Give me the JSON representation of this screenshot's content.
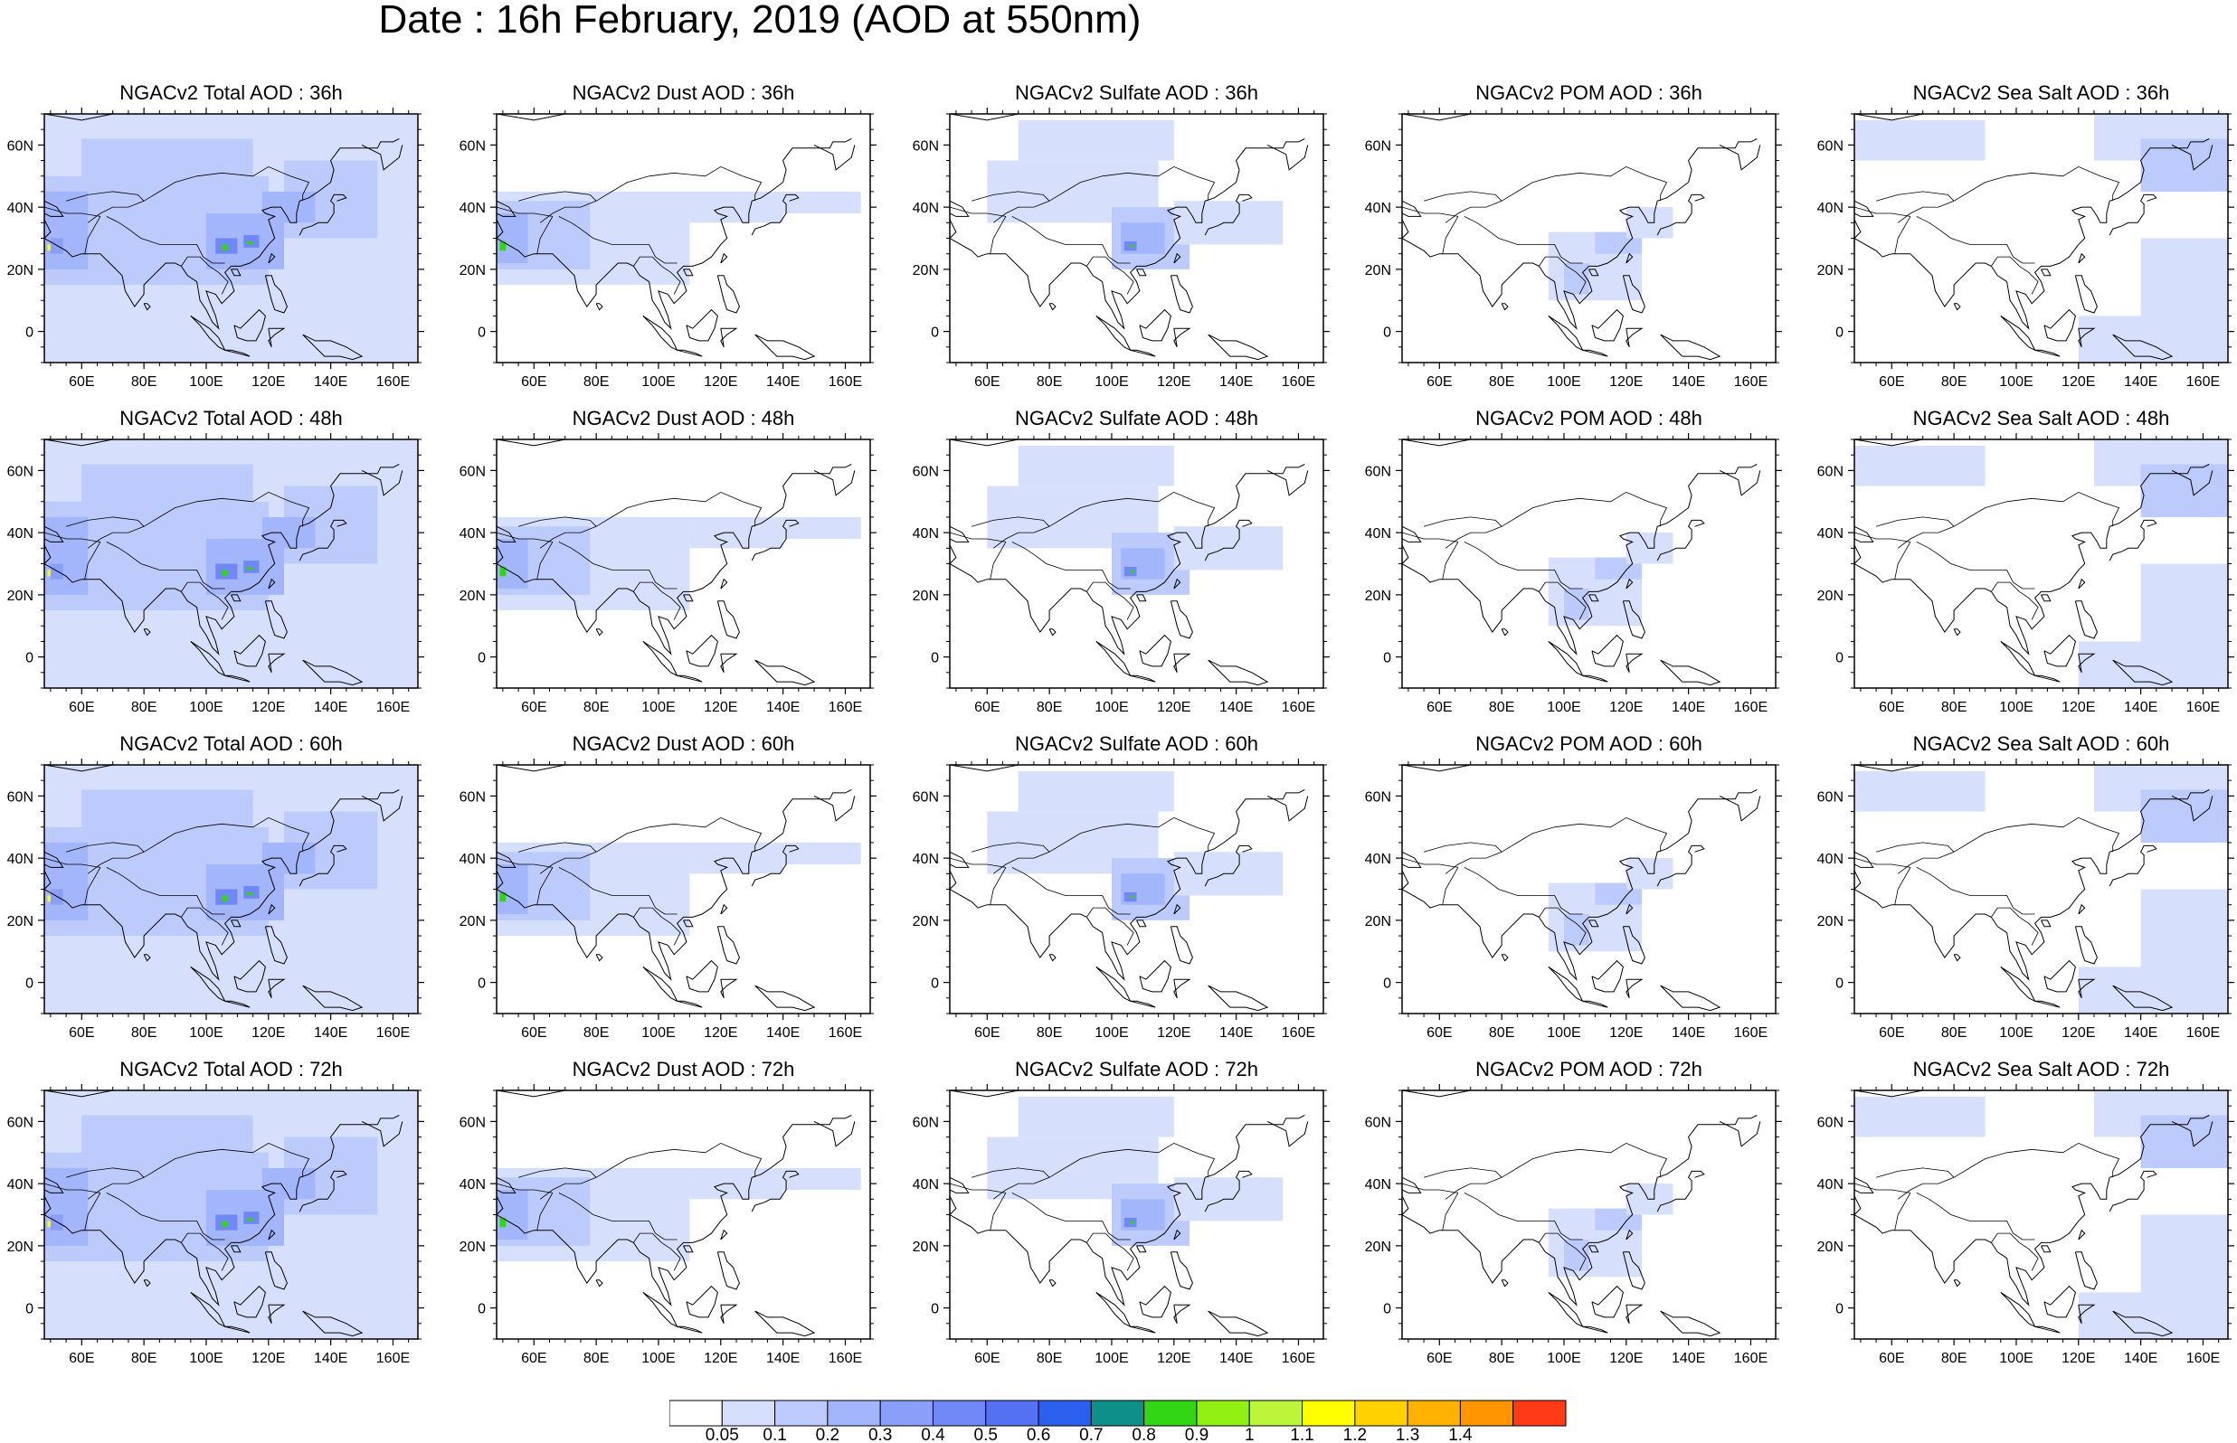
{
  "title": "Date : 16h February, 2019 (AOD at 550nm)",
  "axes": {
    "lon_ticks": [
      "60E",
      "80E",
      "100E",
      "120E",
      "140E",
      "160E"
    ],
    "lat_ticks": [
      "60N",
      "40N",
      "20N",
      "0"
    ]
  },
  "legend": {
    "levels": [
      "0.05",
      "0.1",
      "0.2",
      "0.3",
      "0.4",
      "0.5",
      "0.6",
      "0.7",
      "0.8",
      "0.9",
      "1",
      "1.1",
      "1.2",
      "1.3",
      "1.4"
    ],
    "colors": [
      "#ffffff",
      "#d6e0fd",
      "#bccafc",
      "#a3b5fb",
      "#8a9ff9",
      "#7088f6",
      "#5571f3",
      "#2b60ef",
      "#0f8f8a",
      "#33d615",
      "#91ef12",
      "#bdf53b",
      "#ffff00",
      "#ffd100",
      "#ffb300",
      "#ff9500",
      "#ff3a17"
    ]
  },
  "panels": [
    {
      "title": "NGACv2 Total AOD : 36h",
      "species": "total",
      "hour": 36
    },
    {
      "title": "NGACv2 Dust AOD : 36h",
      "species": "dust",
      "hour": 36
    },
    {
      "title": "NGACv2 Sulfate AOD : 36h",
      "species": "sulfate",
      "hour": 36
    },
    {
      "title": "NGACv2 POM AOD : 36h",
      "species": "pom",
      "hour": 36
    },
    {
      "title": "NGACv2 Sea Salt AOD : 36h",
      "species": "seasalt",
      "hour": 36
    },
    {
      "title": "NGACv2 Total AOD : 48h",
      "species": "total",
      "hour": 48
    },
    {
      "title": "NGACv2 Dust AOD : 48h",
      "species": "dust",
      "hour": 48
    },
    {
      "title": "NGACv2 Sulfate AOD : 48h",
      "species": "sulfate",
      "hour": 48
    },
    {
      "title": "NGACv2 POM AOD : 48h",
      "species": "pom",
      "hour": 48
    },
    {
      "title": "NGACv2 Sea Salt AOD : 48h",
      "species": "seasalt",
      "hour": 48
    },
    {
      "title": "NGACv2 Total AOD : 60h",
      "species": "total",
      "hour": 60
    },
    {
      "title": "NGACv2 Dust AOD : 60h",
      "species": "dust",
      "hour": 60
    },
    {
      "title": "NGACv2 Sulfate AOD : 60h",
      "species": "sulfate",
      "hour": 60
    },
    {
      "title": "NGACv2 POM AOD : 60h",
      "species": "pom",
      "hour": 60
    },
    {
      "title": "NGACv2 Sea Salt AOD : 60h",
      "species": "seasalt",
      "hour": 60
    },
    {
      "title": "NGACv2 Total AOD : 72h",
      "species": "total",
      "hour": 72
    },
    {
      "title": "NGACv2 Dust AOD : 72h",
      "species": "dust",
      "hour": 72
    },
    {
      "title": "NGACv2 Sulfate AOD : 72h",
      "species": "sulfate",
      "hour": 72
    },
    {
      "title": "NGACv2 POM AOD : 72h",
      "species": "pom",
      "hour": 72
    },
    {
      "title": "NGACv2 Sea Salt  AOD : 72h",
      "species": "seasalt",
      "hour": 72
    }
  ],
  "map_extent": {
    "lon_min": 48,
    "lon_max": 168,
    "lat_min": -10,
    "lat_max": 70
  }
}
